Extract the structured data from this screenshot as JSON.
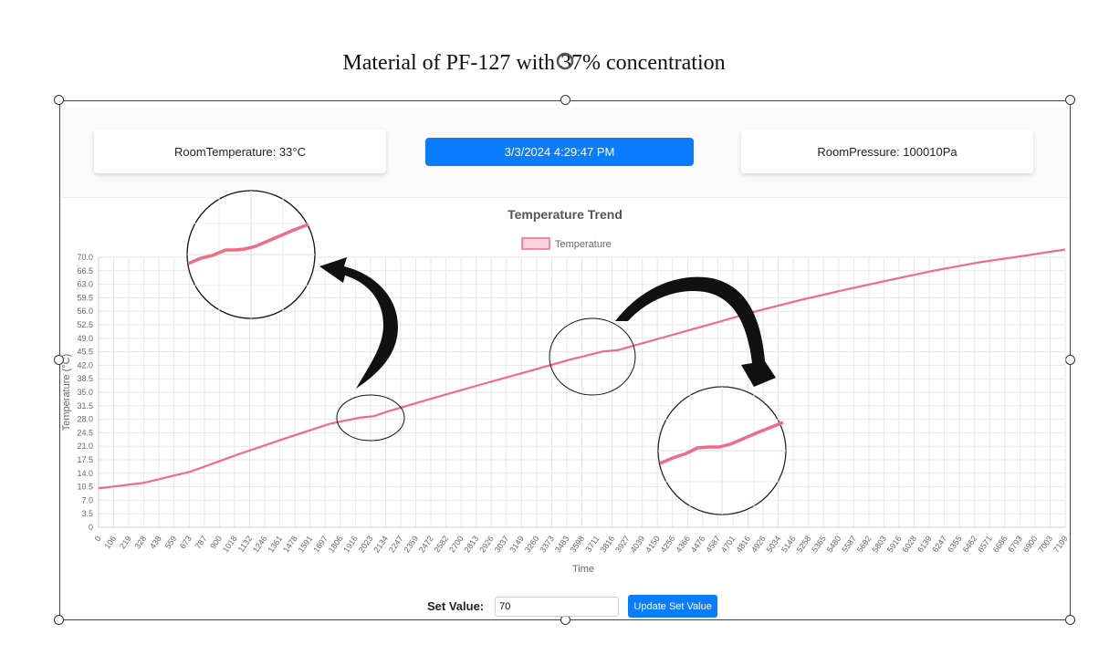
{
  "document": {
    "title": "Material of PF-127 with 37% concentration"
  },
  "header": {
    "room_temperature": "RoomTemperature: 33°C",
    "datetime": "3/3/2024 4:29:47 PM",
    "room_pressure": "RoomPressure: 100010Pa"
  },
  "controls": {
    "set_label": "Set Value:",
    "set_value": "70",
    "update_label": "Update Set Value"
  },
  "colors": {
    "accent": "#0a7cff",
    "series": "#f06b86",
    "series_fill": "#fbd3dc"
  },
  "chart_data": {
    "type": "line",
    "title": "Temperature Trend",
    "xlabel": "Time",
    "ylabel": "Temperature (°C)",
    "legend": "top-center",
    "grid": true,
    "ylim": [
      0,
      70
    ],
    "yticks": [
      "70.0",
      "66.5",
      "63.0",
      "59.5",
      "56.0",
      "52.5",
      "49.0",
      "45.5",
      "42.0",
      "38.5",
      "35.0",
      "31.5",
      "28.0",
      "24.5",
      "21.0",
      "17.5",
      "14.0",
      "10.5",
      "7.0",
      "3.5",
      "0"
    ],
    "xticks": [
      "0",
      "106",
      "219",
      "328",
      "438",
      "559",
      "673",
      "787",
      "900",
      "1018",
      "1132",
      "1246",
      "1361",
      "1478",
      "1591",
      "1697",
      "1806",
      "1916",
      "2023",
      "2134",
      "2247",
      "2359",
      "2472",
      "2582",
      "2700",
      "2813",
      "2926",
      "3037",
      "3149",
      "3260",
      "3373",
      "3483",
      "3598",
      "3711",
      "3816",
      "3927",
      "4039",
      "4150",
      "4256",
      "4366",
      "4476",
      "4587",
      "4701",
      "4816",
      "4926",
      "5034",
      "5146",
      "5258",
      "5365",
      "5480",
      "5587",
      "5692",
      "5803",
      "5916",
      "6028",
      "6139",
      "6247",
      "6355",
      "6462",
      "6571",
      "6686",
      "6793",
      "6900",
      "7003",
      "7109"
    ],
    "series": [
      {
        "name": "Temperature",
        "x": [
          0,
          328,
          673,
          1018,
          1361,
          1697,
          1916,
          2023,
          2134,
          2472,
          2813,
          3149,
          3483,
          3711,
          3816,
          4150,
          4476,
          4816,
          5146,
          5480,
          5803,
          6139,
          6462,
          6793,
          7109
        ],
        "values": [
          10.1,
          11.5,
          14.4,
          18.8,
          22.9,
          26.8,
          28.4,
          28.8,
          30.1,
          33.6,
          37.0,
          40.3,
          43.6,
          45.6,
          45.9,
          49.2,
          52.4,
          55.8,
          58.8,
          61.5,
          64.0,
          66.5,
          68.6,
          70.3,
          72.0
        ]
      }
    ]
  }
}
